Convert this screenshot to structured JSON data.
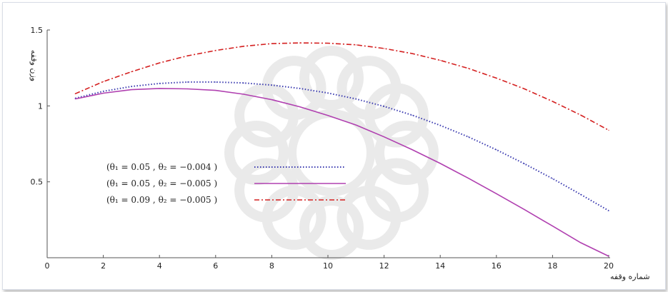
{
  "chart_data": {
    "type": "line",
    "xlabel": "شماره وقفه",
    "ylabel": "وزن وقفه",
    "xlim": [
      0,
      20
    ],
    "ylim": [
      0,
      1.5
    ],
    "x_ticks": [
      "0",
      "2",
      "4",
      "6",
      "8",
      "10",
      "12",
      "14",
      "16",
      "18",
      "20"
    ],
    "y_ticks": [
      {
        "value": 0.5,
        "label": "0.5"
      },
      {
        "value": 1.0,
        "label": "1"
      },
      {
        "value": 1.5,
        "label": "1.5"
      }
    ],
    "grid": false,
    "legend_position": "left-center",
    "x": [
      1,
      2,
      3,
      4,
      5,
      6,
      7,
      8,
      9,
      10,
      11,
      12,
      13,
      14,
      15,
      16,
      17,
      18,
      19,
      20
    ],
    "series": [
      {
        "name": "(θ₁ = 0.05 ,    θ₂ = −0.004 )",
        "color": "#3b3bb0",
        "style": "dotted",
        "values": [
          1.05,
          1.096,
          1.128,
          1.148,
          1.157,
          1.157,
          1.151,
          1.137,
          1.115,
          1.085,
          1.046,
          0.997,
          0.939,
          0.872,
          0.796,
          0.711,
          0.619,
          0.521,
          0.417,
          0.31
        ]
      },
      {
        "name": "(θ₁ = 0.05 ,    θ₂ = −0.005 )",
        "color": "#b040b0",
        "style": "solid",
        "values": [
          1.046,
          1.084,
          1.107,
          1.115,
          1.112,
          1.102,
          1.077,
          1.041,
          0.994,
          0.937,
          0.874,
          0.796,
          0.712,
          0.621,
          0.524,
          0.422,
          0.317,
          0.209,
          0.099,
          0.01
        ]
      },
      {
        "name": "(θ₁ = 0.09 ,    θ₂ = −0.005 )",
        "color": "#d42020",
        "style": "dashdot",
        "values": [
          1.08,
          1.16,
          1.225,
          1.283,
          1.33,
          1.365,
          1.393,
          1.41,
          1.415,
          1.413,
          1.402,
          1.378,
          1.345,
          1.3,
          1.247,
          1.183,
          1.112,
          1.03,
          0.94,
          0.84
        ]
      }
    ]
  }
}
